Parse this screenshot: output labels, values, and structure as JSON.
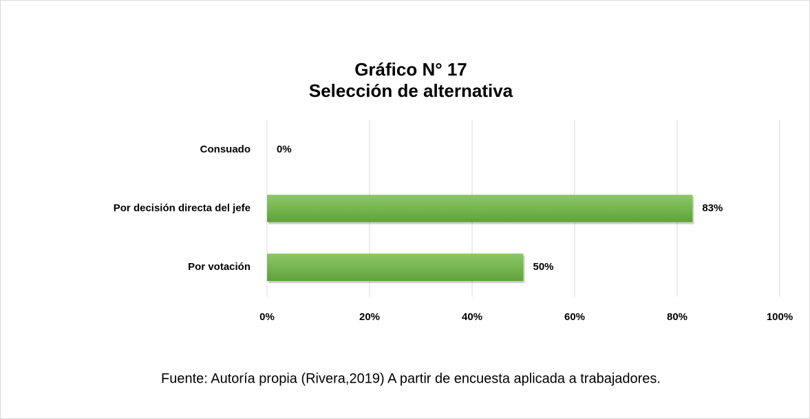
{
  "chart_data": {
    "type": "barh",
    "title": "Gráfico N° 17",
    "subtitle": "Selección de alternativa",
    "categories": [
      "Consuado",
      "Por decisión directa del jefe",
      "Por votación"
    ],
    "values": [
      0,
      83,
      50
    ],
    "value_labels": [
      "0%",
      "83%",
      "50%"
    ],
    "color": "#70ad47",
    "xlim": [
      0,
      100
    ],
    "xticks": [
      {
        "value": 0,
        "label": "0%"
      },
      {
        "value": 20,
        "label": "20%"
      },
      {
        "value": 40,
        "label": "40%"
      },
      {
        "value": 60,
        "label": "60%"
      },
      {
        "value": 80,
        "label": "80%"
      },
      {
        "value": 100,
        "label": "100%"
      }
    ],
    "grid": true,
    "caption": "Fuente: Autoría propia (Rivera,2019) A partir de encuesta aplicada a trabajadores."
  }
}
